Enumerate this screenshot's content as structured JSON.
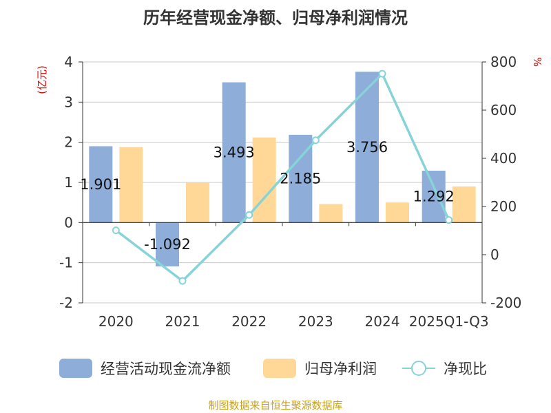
{
  "chart_data": {
    "type": "bar",
    "title": "历年经营现金净额、归母净利润情况",
    "categories": [
      "2020",
      "2021",
      "2022",
      "2023",
      "2024",
      "2025Q1-Q3"
    ],
    "y_left_unit": "(亿元)",
    "y_right_unit": "%",
    "ylim_left": [
      -2,
      4
    ],
    "ylim_right": [
      -200,
      800
    ],
    "yticks_left": [
      "4",
      "3",
      "2",
      "1",
      "0",
      "-1",
      "-2"
    ],
    "yticks_right": [
      "800",
      "600",
      "400",
      "200",
      "0",
      "-200"
    ],
    "grid": true,
    "legend_position": "bottom",
    "series": [
      {
        "name": "经营活动现金流净额",
        "kind": "bar",
        "axis": "left",
        "color": "#8eadd8",
        "values": [
          1.901,
          -1.092,
          3.493,
          2.185,
          3.756,
          1.292
        ],
        "labels": [
          "1.901",
          "-1.092",
          "3.493",
          "2.185",
          "3.756",
          "1.292"
        ]
      },
      {
        "name": "归母净利润",
        "kind": "bar",
        "axis": "left",
        "color": "#ffd898",
        "values": [
          1.88,
          1.0,
          2.12,
          0.46,
          0.5,
          0.9
        ]
      },
      {
        "name": "净现比",
        "kind": "line",
        "axis": "right",
        "color": "#86d3d8",
        "values": [
          101,
          -109,
          165,
          475,
          751,
          144
        ]
      }
    ],
    "source": "制图数据来自恒生聚源数据库"
  }
}
